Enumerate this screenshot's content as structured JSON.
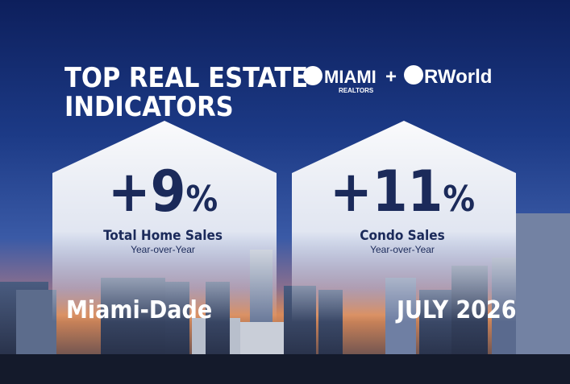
{
  "header": {
    "title_line1": "TOP REAL ESTATE",
    "title_line2": "INDICATORS",
    "logo_left": "MIAMI",
    "logo_left_sub": "REALTORS",
    "logo_plus": "+",
    "logo_right": "RWorld"
  },
  "panels": [
    {
      "value": "+9",
      "unit": "%",
      "label": "Total Home Sales",
      "sublabel": "Year-over-Year"
    },
    {
      "value": "+11",
      "unit": "%",
      "label": "Condo Sales",
      "sublabel": "Year-over-Year"
    }
  ],
  "footer": {
    "region": "Miami-Dade",
    "period": "JULY 2026"
  }
}
